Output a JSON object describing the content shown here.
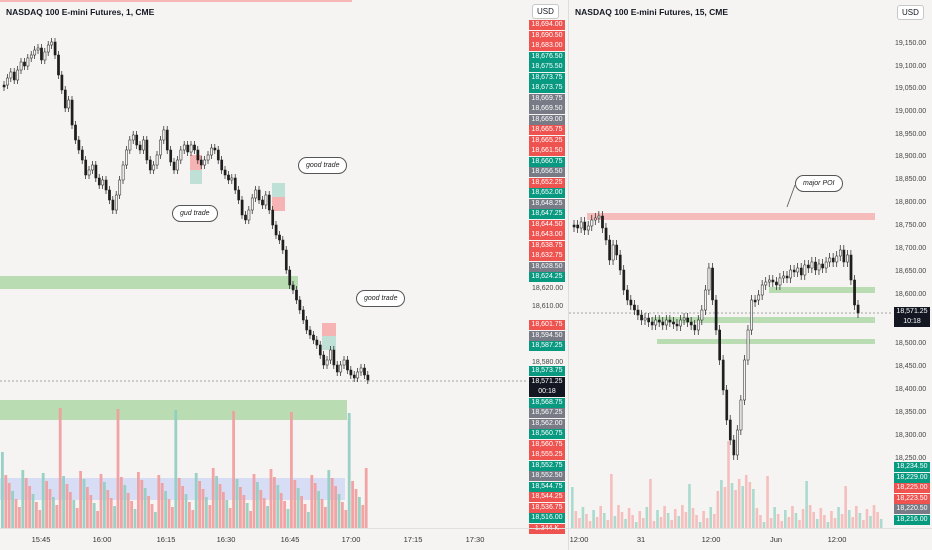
{
  "left": {
    "title": "NASDAQ 100 E-mini Futures, 1, CME",
    "currency": "USD",
    "price_tags": [
      {
        "v": "18,694.00",
        "c": "red"
      },
      {
        "v": "18,690.50",
        "c": "red"
      },
      {
        "v": "18,683.00",
        "c": "red"
      },
      {
        "v": "18,676.50",
        "c": "green"
      },
      {
        "v": "18,675.50",
        "c": "green"
      },
      {
        "v": "18,673.75",
        "c": "green"
      },
      {
        "v": "18,673.75",
        "c": "green"
      },
      {
        "v": "18,669.75",
        "c": "gray"
      },
      {
        "v": "18,669.50",
        "c": "gray"
      },
      {
        "v": "18,669.00",
        "c": "gray"
      },
      {
        "v": "18,665.75",
        "c": "red"
      },
      {
        "v": "18,665.25",
        "c": "red"
      },
      {
        "v": "18,661.50",
        "c": "red"
      },
      {
        "v": "18,660.75",
        "c": "green"
      },
      {
        "v": "18,656.50",
        "c": "gray"
      },
      {
        "v": "18,652.25",
        "c": "red"
      },
      {
        "v": "18,652.00",
        "c": "green"
      },
      {
        "v": "18,648.25",
        "c": "gray"
      },
      {
        "v": "18,647.25",
        "c": "green"
      },
      {
        "v": "18,644.50",
        "c": "red"
      },
      {
        "v": "18,643.00",
        "c": "red"
      },
      {
        "v": "18,638.75",
        "c": "red"
      },
      {
        "v": "18,632.75",
        "c": "red"
      },
      {
        "v": "18,628.50",
        "c": "gray"
      },
      {
        "v": "18,624.25",
        "c": "green"
      }
    ],
    "plain_ticks": [
      "18,620.00",
      "18,610.00",
      "18,580.00"
    ],
    "lower_tags_a": [
      {
        "v": "18,601.75",
        "c": "red"
      },
      {
        "v": "18,594.50",
        "c": "gray"
      },
      {
        "v": "18,587.25",
        "c": "green"
      }
    ],
    "lower_tags_b": [
      {
        "v": "18,573.75",
        "c": "green"
      },
      {
        "v": "18,571.25",
        "c": "black"
      },
      {
        "v": "00:18",
        "c": "black"
      },
      {
        "v": "18,568.75",
        "c": "green"
      },
      {
        "v": "18,567.25",
        "c": "gray"
      },
      {
        "v": "18,562.00",
        "c": "gray"
      },
      {
        "v": "18,560.75",
        "c": "green"
      },
      {
        "v": "18,560.75",
        "c": "red"
      },
      {
        "v": "18,555.25",
        "c": "red"
      },
      {
        "v": "18,552.75",
        "c": "green"
      },
      {
        "v": "18,552.50",
        "c": "gray"
      },
      {
        "v": "18,544.75",
        "c": "green"
      },
      {
        "v": "18,544.25",
        "c": "red"
      },
      {
        "v": "18,536.75",
        "c": "red"
      },
      {
        "v": "18,516.00",
        "c": "green"
      },
      {
        "v": "1.344 K",
        "c": "red"
      }
    ],
    "x_labels": [
      "15:45",
      "16:00",
      "16:15",
      "16:30",
      "16:45",
      "17:00",
      "17:15",
      "17:30"
    ],
    "callouts": {
      "gud": "gud trade",
      "good1": "good trade",
      "good2": "good trade"
    }
  },
  "right": {
    "title": "NASDAQ 100 E-mini Futures, 15, CME",
    "currency": "USD",
    "ticks": [
      "19,150.00",
      "19,100.00",
      "19,050.00",
      "19,000.00",
      "18,950.00",
      "18,900.00",
      "18,850.00",
      "18,800.00",
      "18,750.00",
      "18,700.00",
      "18,650.00",
      "18,600.00",
      "18,500.00",
      "18,450.00",
      "18,400.00",
      "18,350.00",
      "18,300.00",
      "18,250.00"
    ],
    "last_price": "18,571.25",
    "countdown": "10:18",
    "lower_tags": [
      {
        "v": "18,234.50",
        "c": "green"
      },
      {
        "v": "18,229.00",
        "c": "green"
      },
      {
        "v": "18,225.00",
        "c": "red"
      },
      {
        "v": "18,223.50",
        "c": "red"
      },
      {
        "v": "18,220.50",
        "c": "gray"
      },
      {
        "v": "18,216.00",
        "c": "green"
      }
    ],
    "x_labels": [
      "12:00",
      "31",
      "12:00",
      "Jun",
      "12:00"
    ],
    "callout": "major POI"
  }
}
